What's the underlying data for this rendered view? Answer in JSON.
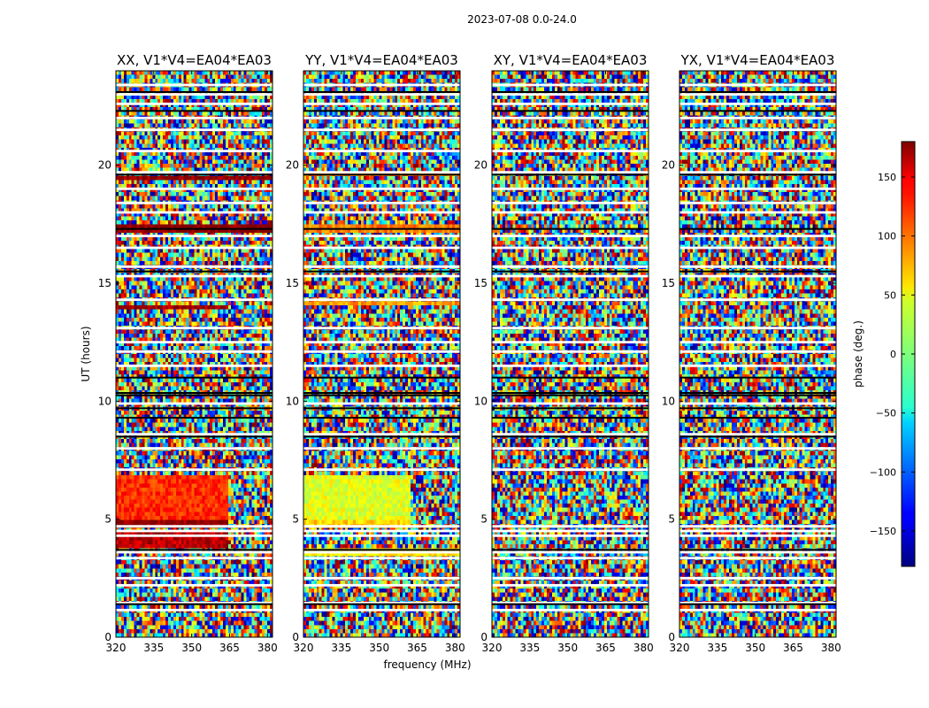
{
  "chart_data": {
    "type": "heatmap",
    "suptitle": "2023-07-08 0.0-24.0",
    "xlabel": "frequency (MHz)",
    "ylabel": "UT (hours)",
    "xlim": [
      320,
      382
    ],
    "ylim": [
      0,
      24
    ],
    "xticks": [
      320,
      335,
      350,
      365,
      380
    ],
    "xtick_labels": [
      "320",
      "335",
      "350",
      "365",
      "380"
    ],
    "yticks": [
      0,
      5,
      10,
      15,
      20
    ],
    "ytick_labels": [
      "0",
      "5",
      "10",
      "15",
      "20"
    ],
    "colorbar": {
      "label": "phase (deg.)",
      "colormap": "jet",
      "range": [
        -180,
        180
      ],
      "ticks": [
        150,
        100,
        50,
        0,
        -50,
        -100,
        -150
      ],
      "tick_labels": [
        "150",
        "100",
        "50",
        "0",
        "−50",
        "−100",
        "−150"
      ]
    },
    "panels": [
      {
        "name": "XX",
        "title": "XX, V1*V4=EA04*EA03"
      },
      {
        "name": "YY",
        "title": "YY, V1*V4=EA04*EA03"
      },
      {
        "name": "XY",
        "title": "XY, V1*V4=EA04*EA03"
      },
      {
        "name": "YX",
        "title": "YX, V1*V4=EA04*EA03"
      }
    ],
    "flagged_hours_white": [
      1.15,
      1.45,
      2.2,
      2.5,
      3.35,
      3.6,
      4.3,
      4.5,
      4.7,
      7.1,
      8.0,
      8.6,
      9.9,
      11.5,
      12.1,
      12.5,
      13.1,
      14.3,
      15.3,
      15.7,
      16.5,
      17.0,
      18.0,
      18.4,
      19.0,
      19.7,
      20.6,
      21.5,
      22.0,
      22.6,
      23.0,
      23.4
    ],
    "flagged_hours_black": [
      1.4,
      3.7,
      8.5,
      9.3,
      9.7,
      10.25,
      10.35,
      11.0,
      15.5,
      17.3,
      19.6,
      22.3,
      23.1
    ],
    "coherent_phase_bands": {
      "XX": [
        {
          "start": 4.65,
          "end": 4.95,
          "phase": 175,
          "f_end": 364
        },
        {
          "start": 5.0,
          "end": 6.8,
          "phase": 120,
          "f_end": 364
        },
        {
          "start": 3.8,
          "end": 4.4,
          "phase": 160,
          "f_end": 364
        },
        {
          "start": 13.9,
          "end": 14.1,
          "phase": 170,
          "f_end": 364
        },
        {
          "start": 17.2,
          "end": 17.5,
          "phase": 178,
          "f_end": 382
        },
        {
          "start": 19.4,
          "end": 19.6,
          "phase": 178,
          "f_end": 382
        }
      ],
      "YY": [
        {
          "start": 4.6,
          "end": 4.9,
          "phase": 60,
          "f_end": 362
        },
        {
          "start": 5.0,
          "end": 6.9,
          "phase": 35,
          "f_end": 362
        },
        {
          "start": 3.5,
          "end": 3.7,
          "phase": 50,
          "f_end": 382
        },
        {
          "start": 14.0,
          "end": 14.2,
          "phase": 80,
          "f_end": 382
        },
        {
          "start": 17.2,
          "end": 17.5,
          "phase": 90,
          "f_end": 382
        },
        {
          "start": 19.5,
          "end": 19.7,
          "phase": 90,
          "f_end": 382
        }
      ],
      "XY": [],
      "YX": []
    }
  }
}
